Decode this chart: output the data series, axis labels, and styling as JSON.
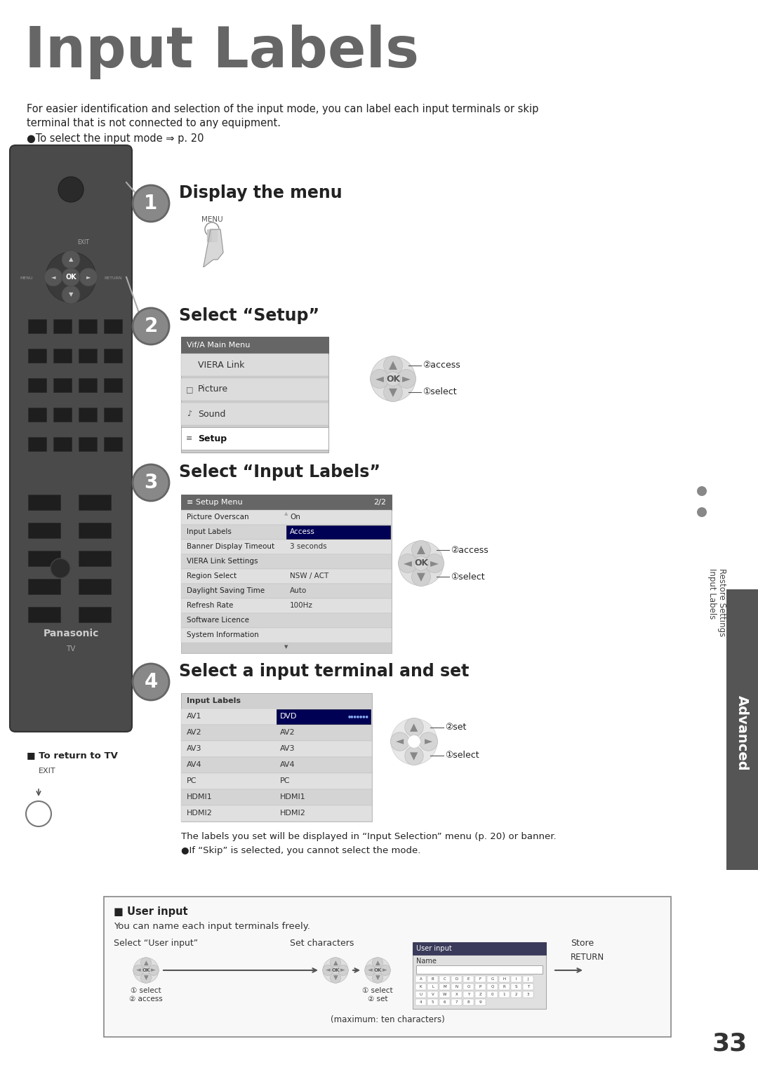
{
  "page_bg": "#ffffff",
  "title": "Input Labels",
  "title_color": "#666666",
  "title_fontsize": 58,
  "intro_line1": "For easier identification and selection of the input mode, you can label each input terminals or skip",
  "intro_line2": "terminal that is not connected to any equipment.",
  "intro_bullet": "●To select the input mode ⇒ p. 20",
  "step1_title": "Display the menu",
  "step1_menu_label": "MENU",
  "step2_title": "Select “Setup”",
  "step3_title": "Select “Input Labels”",
  "step4_title": "Select a input terminal and set",
  "setup_menu_title": "Vif/A Main Menu",
  "setup_menu_items": [
    "VIERA Link",
    "Picture",
    "Sound",
    "Setup"
  ],
  "setup_menu_selected": "Setup",
  "il_menu_title": "Setup Menu",
  "il_menu_page": "2/2",
  "il_menu_items": [
    "Picture Overscan",
    "Input Labels",
    "Banner Display Timeout",
    "VIERA Link Settings",
    "Region Select",
    "Daylight Saving Time",
    "Refresh Rate",
    "Software Licence",
    "System Information"
  ],
  "il_menu_values": [
    "On",
    "Access",
    "3 seconds",
    "",
    "NSW / ACT",
    "Auto",
    "100Hz",
    "",
    ""
  ],
  "il_menu_selected": "Input Labels",
  "il_table_title": "Input Labels",
  "il_rows": [
    [
      "AV1",
      "DVD"
    ],
    [
      "AV2",
      "AV2"
    ],
    [
      "AV3",
      "AV3"
    ],
    [
      "AV4",
      "AV4"
    ],
    [
      "PC",
      "PC"
    ],
    [
      "HDMI1",
      "HDMI1"
    ],
    [
      "HDMI2",
      "HDMI2"
    ]
  ],
  "il_selected_row": 0,
  "note_text1": "The labels you set will be displayed in “Input Selection” menu (p. 20) or banner.",
  "note_text2": "●If “Skip” is selected, you cannot select the mode.",
  "return_to_tv": "■ To return to TV",
  "exit_label": "EXIT",
  "advanced_text": "Advanced",
  "sidebar_label1": "Input Labels",
  "sidebar_label2": "Restore Settings",
  "page_number": "33",
  "user_input_title": "■ User input",
  "user_input_desc": "You can name each input terminals freely.",
  "user_input_col1": "Select “User input”",
  "user_input_col2": "Set characters",
  "user_input_col3": "Store",
  "user_input_sub1a": "① select",
  "user_input_sub1b": "② access",
  "user_input_sub2a": "① select",
  "user_input_sub2b": "② set",
  "user_input_box_title": "User input",
  "user_input_name": "Name",
  "user_input_keys1": "ABCDEFGHIJ",
  "user_input_keys2": "KLMNOPQRST",
  "user_input_keys3": "UVWXYZ0123",
  "user_input_keys4": "456789",
  "user_input_max": "(maximum: ten characters)",
  "return_label": "RETURN",
  "access_label": "②access",
  "select_label": "①select",
  "set_label": "②set",
  "select_label2": "①select"
}
